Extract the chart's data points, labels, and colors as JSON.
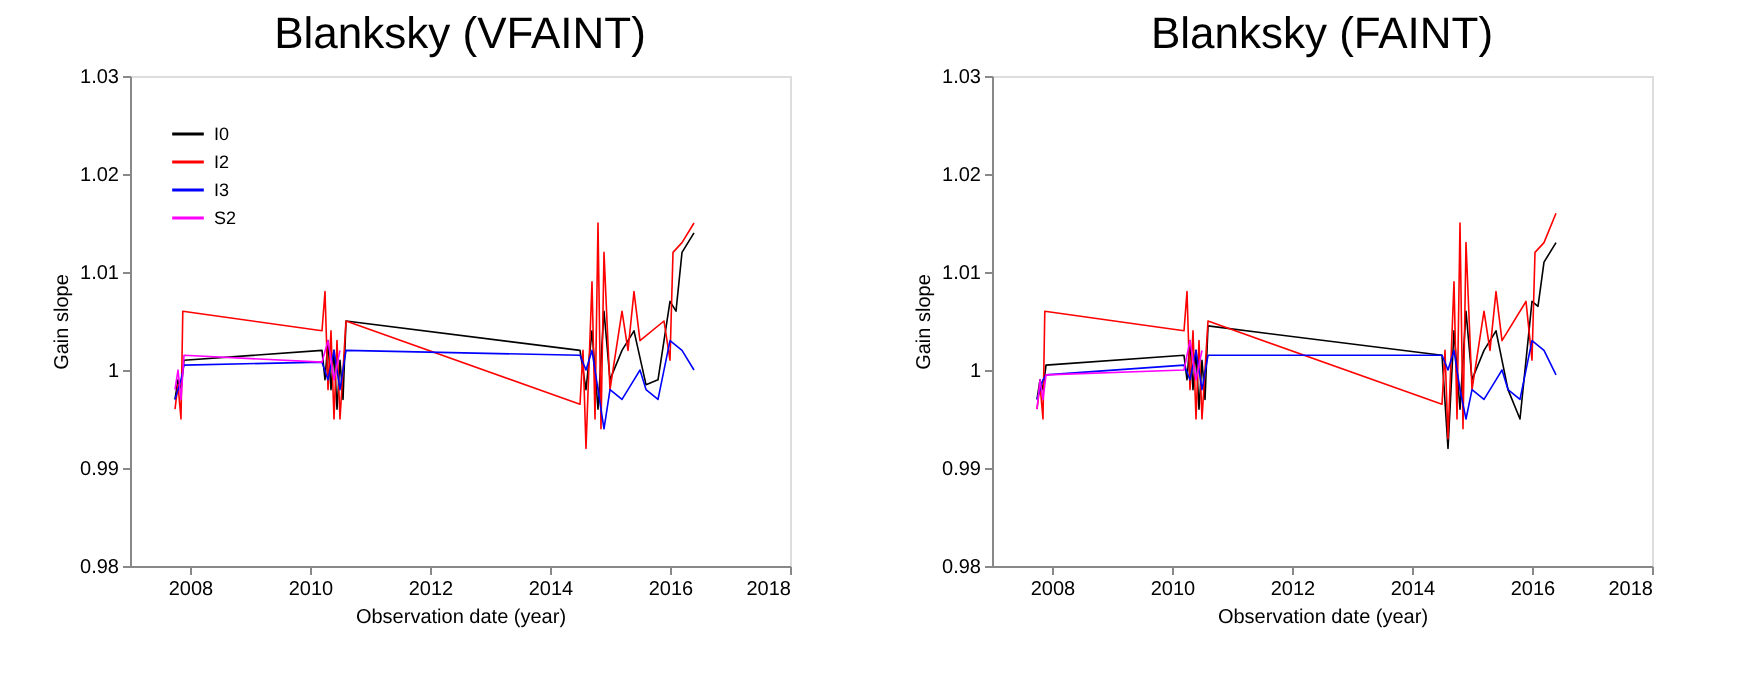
{
  "chart_data": [
    {
      "type": "line",
      "title": "Blanksky (VFAINT)",
      "xlabel": "Observation date (year)",
      "ylabel": "Gain slope",
      "xlim": [
        2007,
        2018
      ],
      "xticks": [
        2008,
        2010,
        2012,
        2014,
        2016,
        2018
      ],
      "ylim": [
        0.98,
        1.03
      ],
      "yticks": [
        0.98,
        0.99,
        1,
        1.01,
        1.02,
        1.03
      ],
      "grid": false,
      "legend": "top left",
      "line_style": "solid",
      "marker": "none",
      "series": [
        {
          "name": "I0",
          "color": "#000000",
          "x": [
            2007.75,
            2007.8,
            2007.85,
            2007.9,
            2010.2,
            2010.25,
            2010.3,
            2010.35,
            2010.4,
            2010.45,
            2010.5,
            2010.55,
            2010.6,
            2014.5,
            2014.6,
            2014.7,
            2014.8,
            2014.9,
            2015.0,
            2015.2,
            2015.4,
            2015.6,
            2015.8,
            2016.0,
            2016.1,
            2016.2,
            2016.4
          ],
          "values": [
            0.997,
            0.999,
            0.998,
            1.001,
            1.002,
            0.999,
            1.003,
            0.998,
            1.002,
            0.996,
            1.001,
            0.997,
            1.005,
            1.002,
            0.998,
            1.004,
            0.996,
            1.006,
            0.999,
            1.002,
            1.004,
            0.9985,
            0.999,
            1.007,
            1.006,
            1.012,
            1.014
          ]
        },
        {
          "name": "I2",
          "color": "#ff0000",
          "x": [
            2007.75,
            2007.8,
            2007.85,
            2007.88,
            2010.2,
            2010.25,
            2010.3,
            2010.35,
            2010.4,
            2010.45,
            2010.5,
            2010.6,
            2014.5,
            2014.55,
            2014.6,
            2014.7,
            2014.75,
            2014.8,
            2014.85,
            2014.9,
            2015.0,
            2015.2,
            2015.3,
            2015.4,
            2015.5,
            2015.9,
            2016.0,
            2016.05,
            2016.2,
            2016.4
          ],
          "values": [
            0.996,
            0.9985,
            0.995,
            1.006,
            1.004,
            1.008,
            0.998,
            1.004,
            0.995,
            1.003,
            0.995,
            1.005,
            0.9965,
            1.002,
            0.992,
            1.009,
            0.995,
            1.015,
            0.994,
            1.012,
            0.998,
            1.006,
            1.002,
            1.008,
            1.003,
            1.005,
            1.001,
            1.012,
            1.013,
            1.015
          ]
        },
        {
          "name": "I3",
          "color": "#0000ff",
          "x": [
            2007.75,
            2007.85,
            2007.9,
            2010.2,
            2010.3,
            2010.4,
            2010.5,
            2010.6,
            2014.5,
            2014.6,
            2014.7,
            2014.8,
            2014.9,
            2015.0,
            2015.2,
            2015.4,
            2015.5,
            2015.6,
            2015.8,
            2016.0,
            2016.2,
            2016.4
          ],
          "values": [
            0.997,
            0.999,
            1.0005,
            1.0008,
            0.999,
            1.002,
            0.998,
            1.002,
            1.0015,
            1.0,
            1.002,
            0.998,
            0.994,
            0.998,
            0.997,
            0.999,
            1.0,
            0.998,
            0.997,
            1.003,
            1.002,
            1.0
          ]
        },
        {
          "name": "S2",
          "color": "#ff00ff",
          "x": [
            2007.75,
            2007.8,
            2007.85,
            2007.9,
            2010.2,
            2010.3,
            2010.4,
            2010.5
          ],
          "values": [
            0.998,
            1.0,
            0.997,
            1.0015,
            1.0008,
            1.003,
            0.999,
            1.002
          ]
        }
      ]
    },
    {
      "type": "line",
      "title": "Blanksky (FAINT)",
      "xlabel": "Observation date (year)",
      "ylabel": "Gain slope",
      "xlim": [
        2007,
        2018
      ],
      "xticks": [
        2008,
        2010,
        2012,
        2014,
        2016,
        2018
      ],
      "ylim": [
        0.98,
        1.03
      ],
      "yticks": [
        0.98,
        0.99,
        1,
        1.01,
        1.02,
        1.03
      ],
      "grid": false,
      "legend": "top left",
      "line_style": "solid",
      "marker": "none",
      "series": [
        {
          "name": "I0",
          "color": "#000000",
          "x": [
            2007.75,
            2007.8,
            2007.85,
            2007.9,
            2010.2,
            2010.25,
            2010.3,
            2010.35,
            2010.4,
            2010.45,
            2010.5,
            2010.55,
            2010.6,
            2014.5,
            2014.6,
            2014.7,
            2014.8,
            2014.9,
            2015.0,
            2015.2,
            2015.4,
            2015.6,
            2015.8,
            2016.0,
            2016.1,
            2016.2,
            2016.4
          ],
          "values": [
            0.997,
            0.999,
            0.998,
            1.0005,
            1.0015,
            0.999,
            1.003,
            0.998,
            1.002,
            0.996,
            1.001,
            0.997,
            1.0045,
            1.0015,
            0.992,
            1.004,
            0.996,
            1.006,
            0.999,
            1.002,
            1.004,
            0.998,
            0.995,
            1.007,
            1.0065,
            1.011,
            1.013
          ]
        },
        {
          "name": "I2",
          "color": "#ff0000",
          "x": [
            2007.75,
            2007.8,
            2007.85,
            2007.88,
            2010.2,
            2010.25,
            2010.3,
            2010.35,
            2010.4,
            2010.45,
            2010.5,
            2010.6,
            2014.5,
            2014.55,
            2014.6,
            2014.7,
            2014.75,
            2014.8,
            2014.85,
            2014.9,
            2015.0,
            2015.2,
            2015.3,
            2015.4,
            2015.5,
            2015.9,
            2016.0,
            2016.05,
            2016.2,
            2016.4
          ],
          "values": [
            0.996,
            0.9985,
            0.995,
            1.006,
            1.004,
            1.008,
            0.998,
            1.004,
            0.995,
            1.003,
            0.995,
            1.005,
            0.9965,
            1.002,
            0.993,
            1.009,
            0.995,
            1.015,
            0.994,
            1.013,
            0.998,
            1.006,
            1.002,
            1.008,
            1.003,
            1.007,
            1.001,
            1.012,
            1.013,
            1.016
          ]
        },
        {
          "name": "I3",
          "color": "#0000ff",
          "x": [
            2007.75,
            2007.85,
            2007.9,
            2010.2,
            2010.3,
            2010.4,
            2010.5,
            2010.6,
            2014.5,
            2014.6,
            2014.7,
            2014.8,
            2014.9,
            2015.0,
            2015.2,
            2015.4,
            2015.5,
            2015.6,
            2015.8,
            2016.0,
            2016.2,
            2016.4
          ],
          "values": [
            0.997,
            0.999,
            0.9995,
            1.0005,
            0.999,
            1.002,
            0.998,
            1.0015,
            1.0015,
            1.0,
            1.002,
            0.998,
            0.995,
            0.998,
            0.997,
            0.999,
            1.0,
            0.998,
            0.997,
            1.003,
            1.002,
            0.9995
          ]
        },
        {
          "name": "S2",
          "color": "#ff00ff",
          "x": [
            2007.75,
            2007.8,
            2007.85,
            2007.9,
            2010.2,
            2010.3,
            2010.4,
            2010.5
          ],
          "values": [
            0.996,
            0.999,
            0.997,
            0.9995,
            1.0,
            1.003,
            0.999,
            1.002
          ]
        }
      ]
    }
  ]
}
